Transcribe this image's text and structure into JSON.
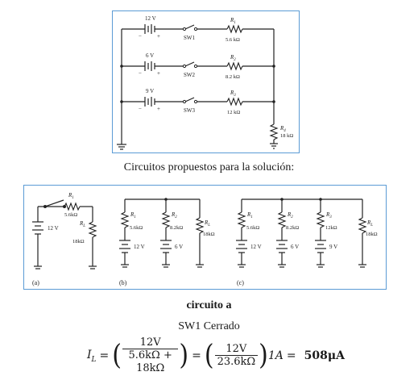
{
  "top_circuit": {
    "branches": [
      {
        "voltage": "12 V",
        "switch": "SW1",
        "resistor": "R",
        "resistor_sub": "1",
        "resistance": "5.6 kΩ"
      },
      {
        "voltage": "6 V",
        "switch": "SW2",
        "resistor": "R",
        "resistor_sub": "2",
        "resistance": "8.2 kΩ"
      },
      {
        "voltage": "9 V",
        "switch": "SW3",
        "resistor": "R",
        "resistor_sub": "3",
        "resistance": "12 kΩ"
      }
    ],
    "load": {
      "resistor": "R",
      "resistor_sub": "4",
      "resistance": "18 kΩ"
    },
    "polarity_minus": "−",
    "polarity_plus": "+"
  },
  "caption_proposed": "Circuitos propuestos para la solución:",
  "bottom_circuits": {
    "a": {
      "label": "(a)",
      "r1": "R",
      "r1_sub": "1",
      "r1_value": "5.6kΩ",
      "rl": "R",
      "rl_sub": "L",
      "rl_value": "18kΩ",
      "source": "12 V"
    },
    "b": {
      "label": "(b)",
      "r1": "R",
      "r1_sub": "1",
      "r1_value": "5.6kΩ",
      "r2": "R",
      "r2_sub": "2",
      "r2_value": "8.2kΩ",
      "rl": "R",
      "rl_sub": "L",
      "rl_value": "18kΩ",
      "source1": "12 V",
      "source2": "6 V"
    },
    "c": {
      "label": "(c)",
      "r1": "R",
      "r1_sub": "1",
      "r1_value": "5.6kΩ",
      "r2": "R",
      "r2_sub": "2",
      "r2_value": "8.2kΩ",
      "r3": "R",
      "r3_sub": "3",
      "r3_value": "12kΩ",
      "rl": "R",
      "rl_sub": "L",
      "rl_value": "18kΩ",
      "source1": "12 V",
      "source2": "6 V",
      "source3": "9 V"
    }
  },
  "heading_circuit_a": "circuito a",
  "switch_state": "SW1 Cerrado",
  "formula": {
    "lhs": "I",
    "lhs_sub": "L",
    "eq": "=",
    "frac1_num": "12V",
    "frac1_den": "5.6kΩ + 18kΩ",
    "frac2_num": "12V",
    "frac2_den": "23.6kΩ",
    "factor": "1A",
    "result": "508μA"
  }
}
